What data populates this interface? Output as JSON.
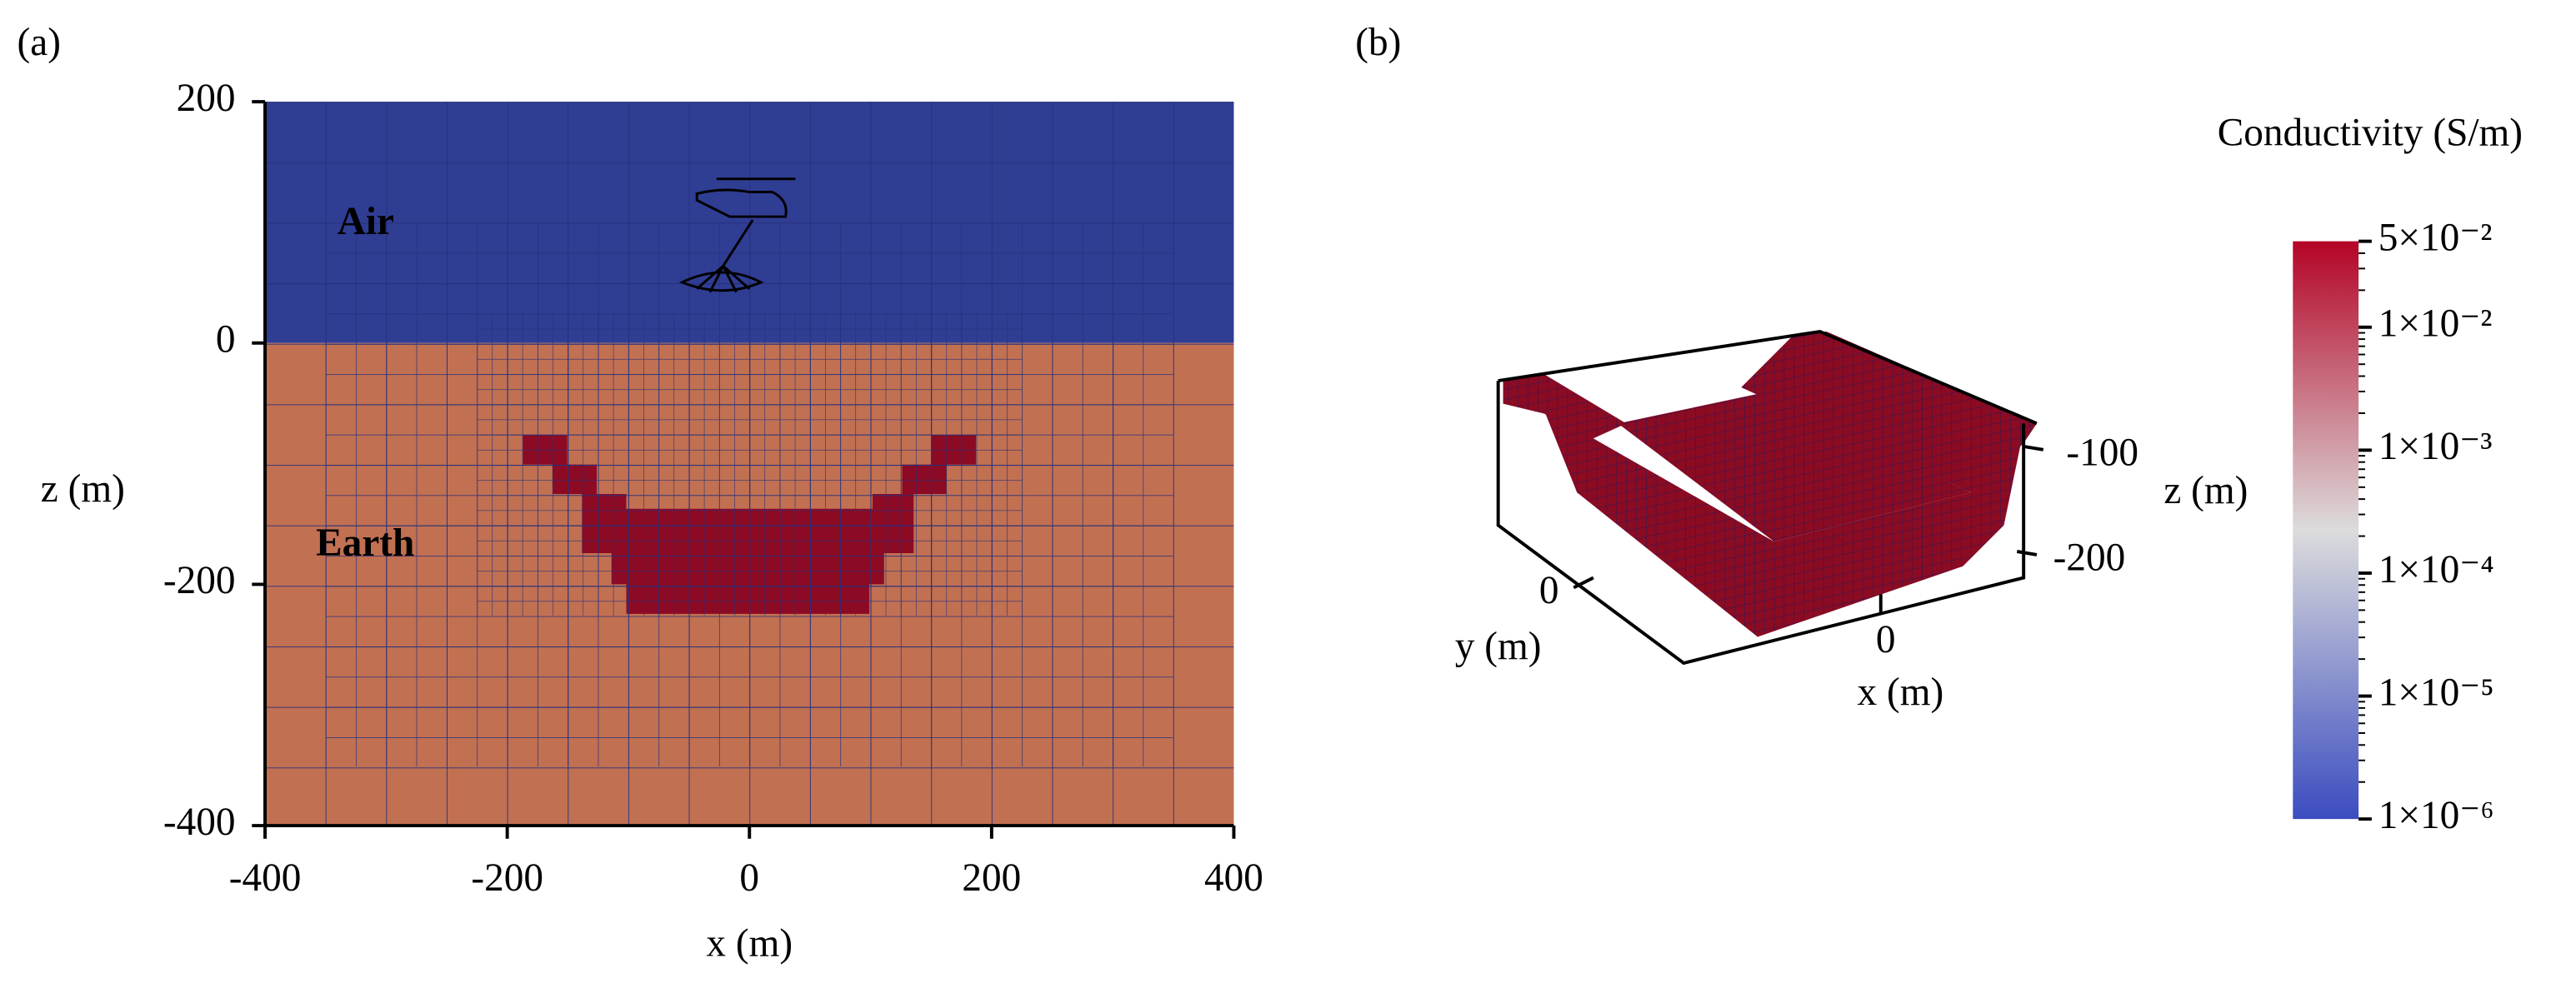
{
  "chart_data": [
    {
      "type": "mesh",
      "panel_label": "(a)",
      "xlabel": "x (m)",
      "ylabel": "z (m)",
      "xlim": [
        -400,
        400
      ],
      "ylim": [
        -400,
        200
      ],
      "xticks": [
        -400,
        -200,
        0,
        200,
        400
      ],
      "yticks": [
        200,
        0,
        -200,
        -400
      ],
      "annotations": [
        "Air",
        "Earth"
      ]
    },
    {
      "type": "voxel3d",
      "panel_label": "(b)",
      "xlabel": "x (m)",
      "ylabel": "y (m)",
      "zlabel": "z (m)",
      "xticks": [
        0
      ],
      "yticks": [
        0
      ],
      "zticks": [
        -100,
        -200
      ],
      "colorbar": {
        "title": "Conductivity (S/m)",
        "log": true,
        "clim": [
          1e-06,
          0.05
        ],
        "colormap": [
          "#3b4cc0",
          "#dcdcdc",
          "#b40426"
        ],
        "ticks": [
          {
            "value": 0.05,
            "label": "5×10⁻²"
          },
          {
            "value": 0.01,
            "label": "1×10⁻²"
          },
          {
            "value": 0.001,
            "label": "1×10⁻³"
          },
          {
            "value": 0.0001,
            "label": "1×10⁻⁴"
          },
          {
            "value": 1e-05,
            "label": "1×10⁻⁵"
          },
          {
            "value": 1e-06,
            "label": "1×10⁻⁶"
          }
        ]
      }
    }
  ]
}
